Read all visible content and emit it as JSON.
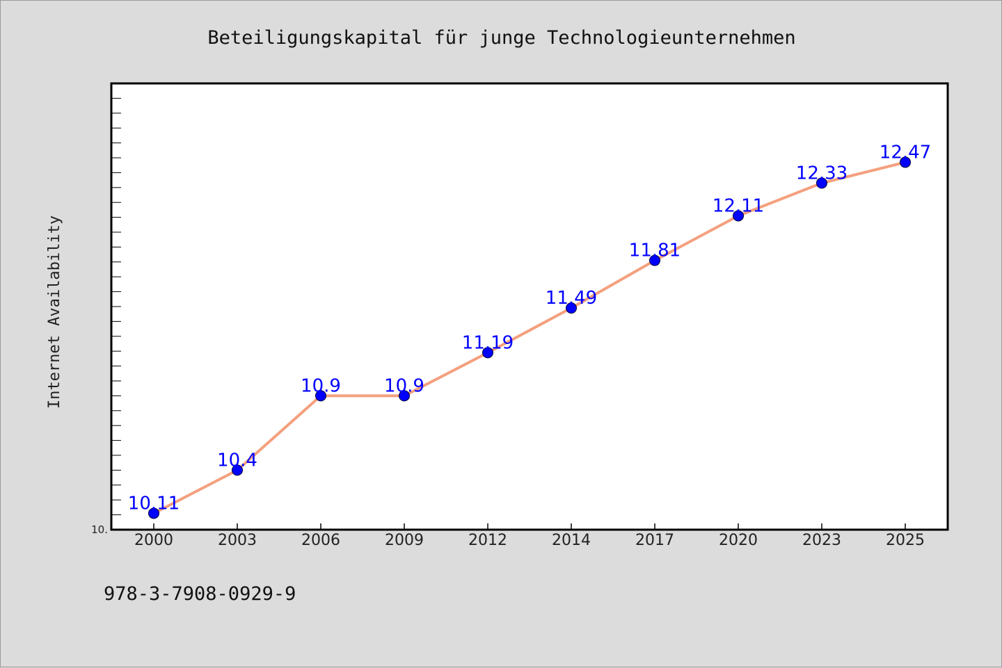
{
  "chart_data": {
    "type": "line",
    "title": "Beteiligungskapital für junge Technologieunternehmen",
    "ylabel": "Internet Availability",
    "xlabel": "",
    "categories": [
      "2000",
      "2003",
      "2006",
      "2009",
      "2012",
      "2014",
      "2017",
      "2020",
      "2023",
      "2025"
    ],
    "series": [
      {
        "values": [
          10.11,
          10.4,
          10.9,
          10.9,
          11.19,
          11.49,
          11.81,
          12.11,
          12.33,
          12.47
        ],
        "labels": [
          "10.11",
          "10.4",
          "10.9",
          "10.9",
          "11.19",
          "11.49",
          "11.81",
          "12.11",
          "12.33",
          "12.47"
        ]
      }
    ],
    "ylim": [
      10.0,
      13.0
    ],
    "y_min_label": "10.",
    "grid": false,
    "legend": "none"
  },
  "footer_text": "978-3-7908-0929-9",
  "colors": {
    "background": "#dcdcdc",
    "plot_background": "#ffffff",
    "line": "#f4a07e",
    "marker": "#0000ff",
    "data_label": "#0000ff",
    "axis": "#000000"
  }
}
